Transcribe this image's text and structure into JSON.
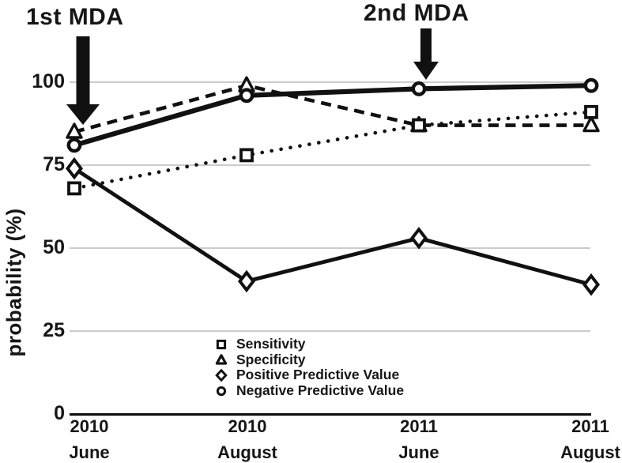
{
  "chart_data": {
    "type": "line",
    "title": "",
    "ylabel": "probability (%)",
    "xlabel": "",
    "ylim": [
      0,
      100
    ],
    "yticks": [
      100,
      75,
      50,
      25,
      0
    ],
    "ytick_labels": [
      "100",
      "75",
      "50",
      "25",
      "0"
    ],
    "grid": true,
    "legend_position": "inside lower-center",
    "categories": [
      {
        "year": "2010",
        "month": "June"
      },
      {
        "year": "2010",
        "month": "August"
      },
      {
        "year": "2011",
        "month": "June"
      },
      {
        "year": "2011",
        "month": "August"
      }
    ],
    "series": [
      {
        "name": "Sensitivity",
        "marker": "square",
        "line": "dotted",
        "values": [
          68,
          78,
          87,
          91
        ]
      },
      {
        "name": "Specificity",
        "marker": "triangle",
        "line": "dashed",
        "values": [
          85,
          99,
          87,
          87
        ]
      },
      {
        "name": "Positive Predictive Value",
        "marker": "diamond",
        "line": "solid",
        "values": [
          74,
          40,
          53,
          39
        ]
      },
      {
        "name": "Negative Predictive Value",
        "marker": "circle",
        "line": "solid-thick",
        "values": [
          81,
          96,
          98,
          99
        ]
      }
    ],
    "annotations": [
      {
        "label": "1st MDA",
        "x_category_index": 0
      },
      {
        "label": "2nd MDA",
        "x_category_index": 2
      }
    ],
    "colors": {
      "line": "#111111",
      "grid": "#c5c5c5",
      "background": "#ffffff"
    }
  }
}
